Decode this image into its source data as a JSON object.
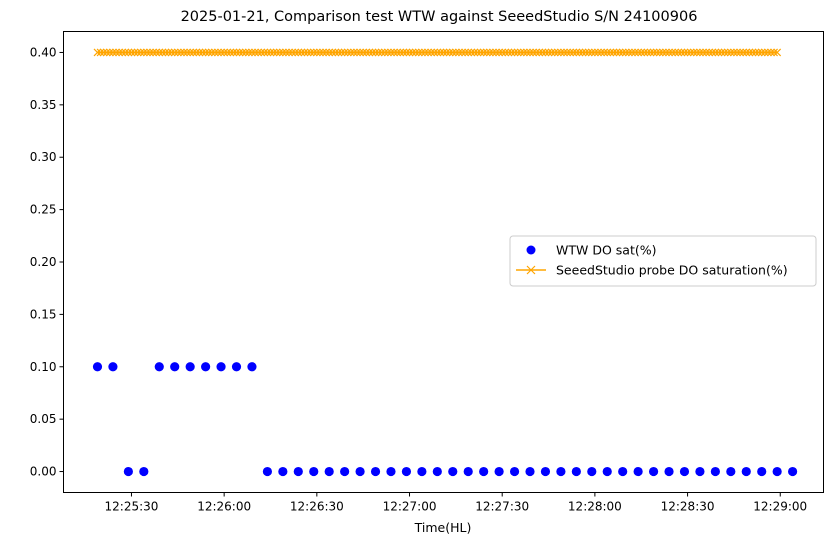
{
  "chart_data": {
    "type": "scatter",
    "title": "2025-01-21, Comparison test WTW against SeeedStudio S/N 24100906",
    "xlabel": "Time(HL)",
    "ylabel": "",
    "x_unit": "time of day (HH:MM:SS)",
    "xlim": [
      "12:25:08",
      "12:29:14"
    ],
    "ylim": [
      -0.02,
      0.42
    ],
    "x_ticks": [
      "12:25:30",
      "12:26:00",
      "12:26:30",
      "12:27:00",
      "12:27:30",
      "12:28:00",
      "12:28:30",
      "12:29:00"
    ],
    "y_ticks": [
      "0.00",
      "0.05",
      "0.10",
      "0.15",
      "0.20",
      "0.25",
      "0.30",
      "0.35",
      "0.40"
    ],
    "grid": false,
    "legend_position": "center-right",
    "series": [
      {
        "name": "WTW DO sat(%)",
        "style": "markers",
        "marker": "circle",
        "color": "#0000ff",
        "x": [
          "12:25:19",
          "12:25:24",
          "12:25:29",
          "12:25:34",
          "12:25:39",
          "12:25:44",
          "12:25:49",
          "12:25:54",
          "12:25:59",
          "12:26:04",
          "12:26:09",
          "12:26:14",
          "12:26:19",
          "12:26:24",
          "12:26:29",
          "12:26:34",
          "12:26:39",
          "12:26:44",
          "12:26:49",
          "12:26:54",
          "12:26:59",
          "12:27:04",
          "12:27:09",
          "12:27:14",
          "12:27:19",
          "12:27:24",
          "12:27:29",
          "12:27:34",
          "12:27:39",
          "12:27:44",
          "12:27:49",
          "12:27:54",
          "12:27:59",
          "12:28:04",
          "12:28:09",
          "12:28:14",
          "12:28:19",
          "12:28:24",
          "12:28:29",
          "12:28:34",
          "12:28:39",
          "12:28:44",
          "12:28:49",
          "12:28:54",
          "12:28:59",
          "12:29:04"
        ],
        "y": [
          0.1,
          0.1,
          0.0,
          0.0,
          0.1,
          0.1,
          0.1,
          0.1,
          0.1,
          0.1,
          0.1,
          0.0,
          0.0,
          0.0,
          0.0,
          0.0,
          0.0,
          0.0,
          0.0,
          0.0,
          0.0,
          0.0,
          0.0,
          0.0,
          0.0,
          0.0,
          0.0,
          0.0,
          0.0,
          0.0,
          0.0,
          0.0,
          0.0,
          0.0,
          0.0,
          0.0,
          0.0,
          0.0,
          0.0,
          0.0,
          0.0,
          0.0,
          0.0,
          0.0,
          0.0,
          0.0
        ]
      },
      {
        "name": "SeeedStudio probe DO saturation(%)",
        "style": "line-markers",
        "marker": "x",
        "color": "#ffa500",
        "x_start": "12:25:19",
        "x_end": "12:28:59",
        "x_step_seconds": 1,
        "y_constant": 0.4
      }
    ]
  }
}
